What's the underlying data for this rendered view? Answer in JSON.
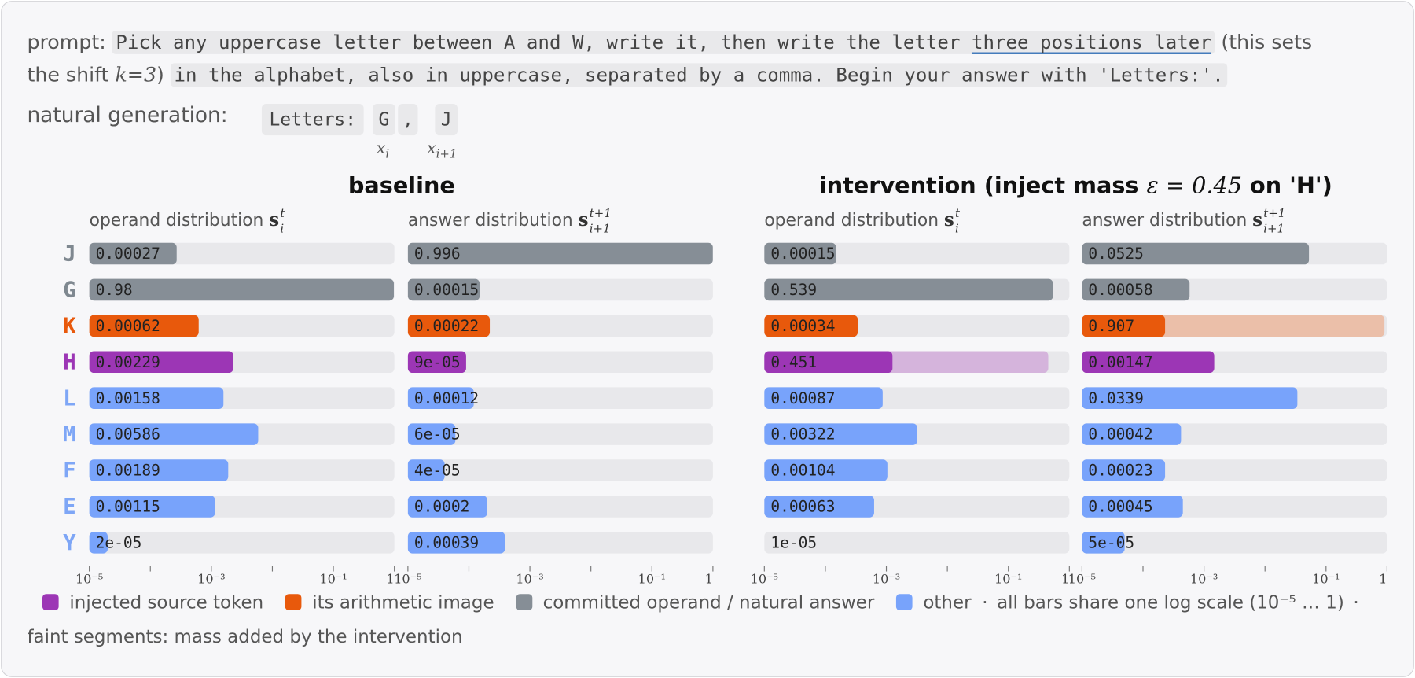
{
  "prompt": {
    "label": "prompt:",
    "code_1": "Pick any uppercase letter between A and W, write it, then write the letter",
    "underlined": "three positions later",
    "text_1": "(this sets",
    "text_2": "the shift",
    "math": "k=3",
    "text_3": ")",
    "code_2": "in the alphabet, also in uppercase, separated by a comma. Begin your answer with 'Letters:'."
  },
  "generation": {
    "label": "natural generation:",
    "tokens": [
      "Letters:",
      "G",
      ",",
      "J"
    ],
    "token_notes": [
      {
        "base": "x",
        "sub": "i"
      },
      {
        "base": "x",
        "sub": "i+1"
      }
    ]
  },
  "group_titles": [
    {
      "text": "baseline"
    },
    {
      "text": "intervention (inject mass ",
      "math": "ε = 0.45",
      "text_after": " on 'H')"
    }
  ],
  "rows": {
    "labels": [
      "J",
      "G",
      "K",
      "H",
      "L",
      "M",
      "F",
      "E",
      "Y"
    ],
    "colors": [
      "#7f8890",
      "#7f8890",
      "#e8590c",
      "#9c36b5",
      "#7ea6f6",
      "#7ea6f6",
      "#7ea6f6",
      "#7ea6f6",
      "#7ea6f6"
    ]
  },
  "chart_data": [
    {
      "type": "bar",
      "orientation": "horizontal",
      "log_x": true,
      "title": "operand distribution",
      "title_math": {
        "base": "s",
        "sub": "i",
        "sup": "t"
      },
      "values": [
        0.00027,
        0.98,
        0.00062,
        0.00229,
        0.00158,
        0.00586,
        0.00189,
        0.00115,
        2e-05
      ],
      "value_labels": [
        "0.00027",
        "0.98",
        "0.00062",
        "0.00229",
        "0.00158",
        "0.00586",
        "0.00189",
        "0.00115",
        "2e-05"
      ],
      "colors": [
        "#868e96",
        "#868e96",
        "#e8590c",
        "#9c36b5",
        "#78a3fb",
        "#78a3fb",
        "#78a3fb",
        "#78a3fb",
        "#78a3fb"
      ],
      "xlim": [
        1e-05,
        1
      ],
      "xticks": [
        {
          "value": 1e-05,
          "label": "10⁻⁵"
        },
        {
          "value": 0.001,
          "label": "10⁻³"
        },
        {
          "value": 0.1,
          "label": "10⁻¹"
        },
        1
      ],
      "minor_xticks": [
        0.0001,
        0.01
      ]
    },
    {
      "type": "bar",
      "orientation": "horizontal",
      "log_x": true,
      "title": "answer distribution",
      "title_math": {
        "base": "s",
        "sub": "i+1",
        "sup": "t+1"
      },
      "values": [
        0.996,
        0.00015,
        0.00022,
        9e-05,
        0.00012,
        6e-05,
        4e-05,
        0.0002,
        0.00039
      ],
      "value_labels": [
        "0.996",
        "0.00015",
        "0.00022",
        "9e-05",
        "0.00012",
        "6e-05",
        "4e-05",
        "0.0002",
        "0.00039"
      ],
      "colors": [
        "#868e96",
        "#868e96",
        "#e8590c",
        "#9c36b5",
        "#78a3fb",
        "#78a3fb",
        "#78a3fb",
        "#78a3fb",
        "#78a3fb"
      ],
      "xlim": [
        1e-05,
        1
      ],
      "xticks": [
        {
          "value": 1e-05,
          "label": "10⁻⁵"
        },
        {
          "value": 0.001,
          "label": "10⁻³"
        },
        {
          "value": 0.1,
          "label": "10⁻¹"
        },
        1
      ],
      "minor_xticks": [
        0.0001,
        0.01
      ]
    },
    {
      "type": "bar",
      "orientation": "horizontal",
      "log_x": true,
      "title": "operand distribution",
      "title_math": {
        "base": "s",
        "sub": "i",
        "sup": "t"
      },
      "values": [
        0.00015,
        0.539,
        0.00034,
        0.451,
        0.00087,
        0.00322,
        0.00104,
        0.00063,
        1e-05
      ],
      "value_labels": [
        "0.00015",
        "0.539",
        "0.00034",
        "0.451",
        "0.00087",
        "0.00322",
        "0.00104",
        "0.00063",
        "1e-05"
      ],
      "base_values": [
        null,
        null,
        null,
        0.00126,
        null,
        null,
        null,
        null,
        null
      ],
      "faint_colors": [
        null,
        null,
        null,
        "#d5b4dc",
        null,
        null,
        null,
        null,
        null
      ],
      "colors": [
        "#868e96",
        "#868e96",
        "#e8590c",
        "#9c36b5",
        "#78a3fb",
        "#78a3fb",
        "#78a3fb",
        "#78a3fb",
        "#78a3fb"
      ],
      "xlim": [
        1e-05,
        1
      ],
      "xticks": [
        {
          "value": 1e-05,
          "label": "10⁻⁵"
        },
        {
          "value": 0.001,
          "label": "10⁻³"
        },
        {
          "value": 0.1,
          "label": "10⁻¹"
        },
        1
      ],
      "minor_xticks": [
        0.0001,
        0.01
      ]
    },
    {
      "type": "bar",
      "orientation": "horizontal",
      "log_x": true,
      "title": "answer distribution",
      "title_math": {
        "base": "s",
        "sub": "i+1",
        "sup": "t+1"
      },
      "values": [
        0.0525,
        0.00058,
        0.907,
        0.00147,
        0.0339,
        0.00042,
        0.00023,
        0.00045,
        5e-05
      ],
      "value_labels": [
        "0.0525",
        "0.00058",
        "0.907",
        "0.00147",
        "0.0339",
        "0.00042",
        "0.00023",
        "0.00045",
        "5e-05"
      ],
      "base_values": [
        null,
        null,
        0.00023,
        null,
        null,
        null,
        null,
        null,
        null
      ],
      "faint_colors": [
        null,
        null,
        "#ebbfa9",
        null,
        null,
        null,
        null,
        null,
        null
      ],
      "colors": [
        "#868e96",
        "#868e96",
        "#e8590c",
        "#9c36b5",
        "#78a3fb",
        "#78a3fb",
        "#78a3fb",
        "#78a3fb",
        "#78a3fb"
      ],
      "xlim": [
        1e-05,
        1
      ],
      "xticks": [
        {
          "value": 1e-05,
          "label": "10⁻⁵"
        },
        {
          "value": 0.001,
          "label": "10⁻³"
        },
        {
          "value": 0.1,
          "label": "10⁻¹"
        },
        1
      ],
      "minor_xticks": [
        0.0001,
        0.01
      ]
    }
  ],
  "legend": {
    "items": [
      {
        "label": "injected source token",
        "color": "#9c36b5"
      },
      {
        "label": "its arithmetic image",
        "color": "#e8590c"
      },
      {
        "label": "committed operand / natural answer",
        "color": "#868e96"
      },
      {
        "label": "other",
        "color": "#78a3fb"
      }
    ],
    "separator": "·",
    "note": "all bars share one log scale (10⁻⁵ … 1)",
    "note_2": "faint segments: mass added by the intervention"
  }
}
